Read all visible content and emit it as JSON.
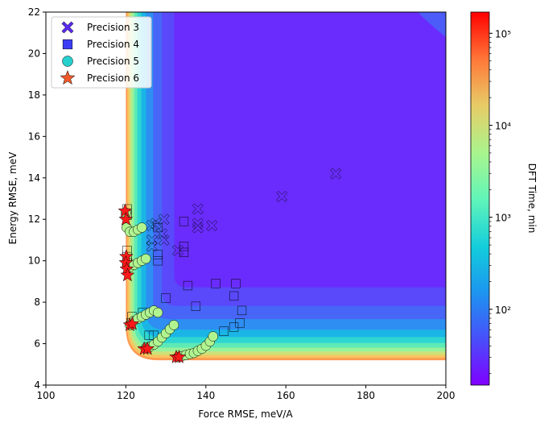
{
  "chart_data": {
    "type": "scatter",
    "title": "",
    "xlabel": "Force RMSE, meV/A",
    "ylabel": "Energy RMSE, meV",
    "xlim": [
      100,
      200
    ],
    "ylim": [
      4,
      22
    ],
    "xticks": [
      100,
      120,
      140,
      160,
      180,
      200
    ],
    "yticks": [
      4,
      6,
      8,
      10,
      12,
      14,
      16,
      18,
      20,
      22
    ],
    "grid": false,
    "legend_position": "top-left",
    "background": {
      "type": "filled-contour",
      "description_field": "DFT Time",
      "colormap": "rainbow",
      "log_scale": true,
      "boundary_force_min": 120,
      "boundary_energy_min": 5.2
    },
    "colorbar": {
      "label": "DFT Time, min",
      "scale": "log",
      "range": [
        15,
        170000
      ],
      "ticks": [
        100,
        1000,
        10000,
        100000
      ],
      "tick_labels": [
        "10²",
        "10³",
        "10⁴",
        "10⁵"
      ]
    },
    "series": [
      {
        "name": "Precision 3",
        "marker": "X",
        "color": "#5a2af0",
        "points": [
          [
            126.5,
            11.7
          ],
          [
            127.5,
            11.8
          ],
          [
            129.5,
            12.0
          ],
          [
            129.0,
            11.3
          ],
          [
            129.5,
            11.0
          ],
          [
            126.5,
            11.0
          ],
          [
            126.5,
            10.7
          ],
          [
            133.0,
            10.5
          ],
          [
            138.0,
            12.5
          ],
          [
            138.0,
            11.8
          ],
          [
            138.0,
            11.6
          ],
          [
            141.5,
            11.7
          ],
          [
            159.0,
            13.1
          ],
          [
            172.5,
            14.2
          ]
        ]
      },
      {
        "name": "Precision 4",
        "marker": "s",
        "color": "#3d3df5",
        "points": [
          [
            120.3,
            12.5
          ],
          [
            120.3,
            12.2
          ],
          [
            120.3,
            10.5
          ],
          [
            120.3,
            10.2
          ],
          [
            120.4,
            9.9
          ],
          [
            121.5,
            7.3
          ],
          [
            121.3,
            7.0
          ],
          [
            124.2,
            7.5
          ],
          [
            125.8,
            6.4
          ],
          [
            127.0,
            6.4
          ],
          [
            128.0,
            11.6
          ],
          [
            128.0,
            10.3
          ],
          [
            128.0,
            10.0
          ],
          [
            130.0,
            8.2
          ],
          [
            134.5,
            11.9
          ],
          [
            134.5,
            10.7
          ],
          [
            134.5,
            10.4
          ],
          [
            135.5,
            8.8
          ],
          [
            137.5,
            7.8
          ],
          [
            142.5,
            8.9
          ],
          [
            147.5,
            8.9
          ],
          [
            147.0,
            8.3
          ],
          [
            149.0,
            7.6
          ],
          [
            148.5,
            7.0
          ],
          [
            147.0,
            6.8
          ],
          [
            144.5,
            6.6
          ]
        ]
      },
      {
        "name": "Precision 5",
        "marker": "o",
        "color": "#26d0ce",
        "points": [
          [
            120.0,
            12.3
          ],
          [
            120.2,
            11.6
          ],
          [
            121.0,
            11.4
          ],
          [
            122.0,
            11.4
          ],
          [
            123.0,
            11.5
          ],
          [
            124.0,
            11.6
          ],
          [
            120.3,
            9.8
          ],
          [
            121.0,
            9.7
          ],
          [
            122.0,
            9.8
          ],
          [
            123.0,
            9.9
          ],
          [
            124.0,
            10.0
          ],
          [
            125.0,
            10.1
          ],
          [
            121.0,
            6.9
          ],
          [
            122.0,
            7.1
          ],
          [
            123.0,
            7.2
          ],
          [
            124.0,
            7.3
          ],
          [
            125.0,
            7.4
          ],
          [
            126.0,
            7.5
          ],
          [
            127.0,
            7.6
          ],
          [
            128.0,
            7.5
          ],
          [
            125.0,
            5.8
          ],
          [
            126.0,
            5.85
          ],
          [
            127.0,
            5.95
          ],
          [
            128.0,
            6.1
          ],
          [
            129.0,
            6.3
          ],
          [
            130.0,
            6.5
          ],
          [
            131.0,
            6.7
          ],
          [
            132.0,
            6.9
          ],
          [
            133.0,
            5.35
          ],
          [
            134.0,
            5.4
          ],
          [
            135.0,
            5.45
          ],
          [
            136.0,
            5.5
          ],
          [
            137.0,
            5.55
          ],
          [
            138.0,
            5.65
          ],
          [
            139.0,
            5.75
          ],
          [
            140.0,
            5.9
          ],
          [
            141.0,
            6.1
          ],
          [
            141.8,
            6.35
          ]
        ]
      },
      {
        "name": "Precision 6",
        "marker": "*",
        "color": "#f05a2a",
        "points": [
          [
            119.8,
            12.4
          ],
          [
            120.0,
            12.0
          ],
          [
            120.1,
            10.2
          ],
          [
            120.0,
            9.9
          ],
          [
            120.2,
            9.6
          ],
          [
            120.4,
            9.3
          ],
          [
            121.0,
            6.9
          ],
          [
            121.6,
            6.95
          ],
          [
            124.6,
            5.75
          ],
          [
            125.4,
            5.75
          ],
          [
            132.6,
            5.35
          ],
          [
            133.3,
            5.35
          ]
        ]
      }
    ]
  }
}
